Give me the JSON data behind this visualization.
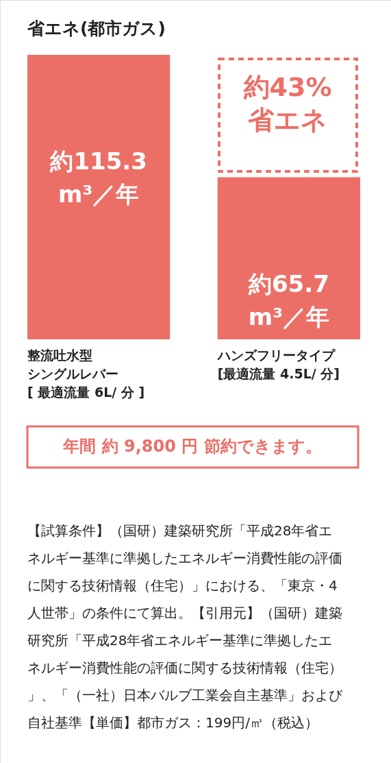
{
  "chart_data": {
    "type": "bar",
    "title": "省エネ(都市ガス)",
    "categories": [
      "整流吐水型シングルレバー[ 最適流量 6L/ 分 ]",
      "ハンズフリータイプ[最適流量 4.5L/ 分]"
    ],
    "values": [
      115.3,
      65.7
    ],
    "value_labels": [
      "約115.3\nm³／年",
      "約65.7\nm³／年"
    ],
    "color": "#ec6f67",
    "annotations": [
      "約43%\n省エネ",
      "年間 約 9,800 円 節約できます。",
      "【試算条件】（国研）建築研究所「平成28年省エネルギー基準に準拠したエネルギー消費性能の評価に関する技術情報（住宅）」における、「東京・4人世帯」の条件にて算出。【引用元】（国研）建築研究所「平成28年省エネルギー基準に準拠したエネルギー消費性能の評価に関する技術情報（住宅）」、「（一社）日本バルブ工業会自主基準」および自社基準【単価】都市ガス：199円/㎥（税込）"
    ]
  }
}
